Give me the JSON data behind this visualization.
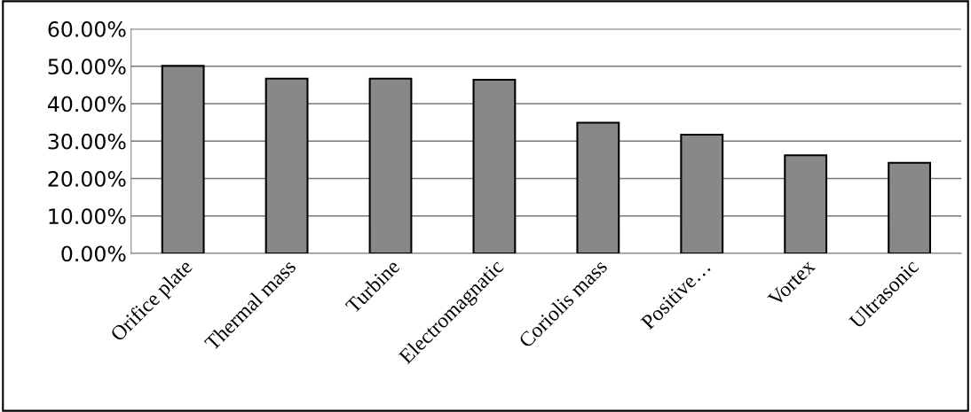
{
  "chart_data": {
    "type": "bar",
    "categories": [
      "Orifice plate",
      "Thermal mass",
      "Turbine",
      "Electromagnatic",
      "Coriolis mass",
      "Positive…",
      "Vortex",
      "Ultrasonic"
    ],
    "values": [
      50.1,
      46.7,
      46.7,
      46.4,
      34.9,
      31.7,
      26.2,
      24.2
    ],
    "color": "#888888",
    "ylim": [
      0,
      60
    ],
    "yticks": [
      {
        "value": 0,
        "label": "0.00%"
      },
      {
        "value": 10,
        "label": "10.00%"
      },
      {
        "value": 20,
        "label": "20.00%"
      },
      {
        "value": 30,
        "label": "30.00%"
      },
      {
        "value": 40,
        "label": "40.00%"
      },
      {
        "value": 50,
        "label": "50.00%"
      },
      {
        "value": 60,
        "label": "60.00%"
      }
    ],
    "grid": "y"
  }
}
